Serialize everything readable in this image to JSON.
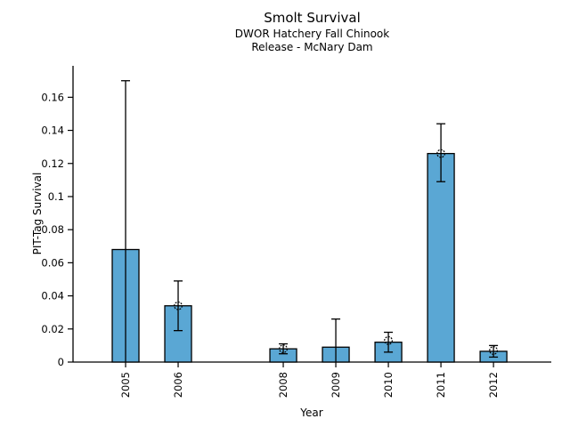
{
  "header": {
    "title": "Smolt Survival",
    "subtitle1": "DWOR Hatchery Fall Chinook",
    "subtitle2": "Release - McNary Dam"
  },
  "colors": {
    "bar_fill": "#5aa7d4",
    "bar_edge": "#000000",
    "error_bar": "#000000",
    "marker_edge": "#000000",
    "axis": "#000000",
    "text": "#000000",
    "background": "#ffffff"
  },
  "chart_data": {
    "type": "bar",
    "title": "Smolt Survival",
    "subtitle": [
      "DWOR Hatchery Fall Chinook",
      "Release - McNary Dam"
    ],
    "xlabel": "Year",
    "ylabel": "PIT-Tag Survival",
    "categories": [
      "2005",
      "2006",
      "2008",
      "2009",
      "2010",
      "2011",
      "2012"
    ],
    "x": [
      2005,
      2006,
      2008,
      2009,
      2010,
      2011,
      2012
    ],
    "values": [
      0.068,
      0.034,
      0.008,
      0.009,
      0.012,
      0.126,
      0.0065
    ],
    "error_low": [
      0,
      0.019,
      0.005,
      0,
      0.006,
      0.109,
      0.003
    ],
    "error_high": [
      0.17,
      0.049,
      0.011,
      0.026,
      0.018,
      0.144,
      0.01
    ],
    "point_estimates": [
      null,
      0.034,
      0.008,
      null,
      0.013,
      0.126,
      0.007
    ],
    "yticks": [
      0,
      0.02,
      0.04,
      0.06,
      0.08,
      0.1,
      0.12,
      0.14,
      0.16
    ],
    "ytick_labels": [
      "0",
      "0.02",
      "0.04",
      "0.06",
      "0.08",
      "0.1",
      "0.12",
      "0.14",
      "0.16"
    ],
    "xlim": [
      2004.0,
      2013.1
    ],
    "ylim": [
      0,
      0.179
    ],
    "grid": false,
    "legend": null
  }
}
